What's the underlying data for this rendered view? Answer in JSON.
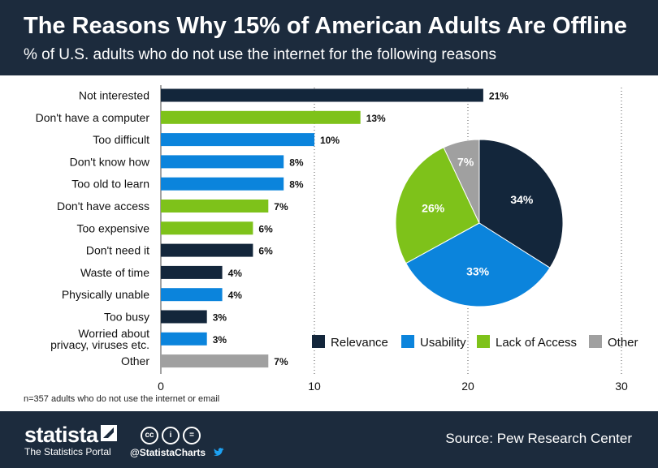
{
  "header": {
    "title": "The Reasons Why 15% of American Adults Are Offline",
    "subtitle": "% of U.S. adults who do not use the internet for the following reasons"
  },
  "colors": {
    "relevance": "#13263b",
    "usability": "#0b84dc",
    "access": "#7ec21a",
    "other": "#a0a0a0"
  },
  "chart_data": [
    {
      "type": "bar",
      "orientation": "horizontal",
      "categories": [
        "Not interested",
        "Don't have a computer",
        "Too difficult",
        "Don't know how",
        "Too old to learn",
        "Don't have access",
        "Too expensive",
        "Don't need it",
        "Waste of time",
        "Physically unable",
        "Too busy",
        "Worried about privacy, viruses etc.",
        "Other"
      ],
      "label_lines": [
        [
          "Not interested"
        ],
        [
          "Don't have a computer"
        ],
        [
          "Too difficult"
        ],
        [
          "Don't know how"
        ],
        [
          "Too old to learn"
        ],
        [
          "Don't have access"
        ],
        [
          "Too expensive"
        ],
        [
          "Don't need it"
        ],
        [
          "Waste of time"
        ],
        [
          "Physically unable"
        ],
        [
          "Too busy"
        ],
        [
          "Worried about",
          "privacy, viruses etc."
        ],
        [
          "Other"
        ]
      ],
      "values": [
        21,
        13,
        10,
        8,
        8,
        7,
        6,
        6,
        4,
        4,
        3,
        3,
        7
      ],
      "value_labels": [
        "21%",
        "13%",
        "10%",
        "8%",
        "8%",
        "7%",
        "6%",
        "6%",
        "4%",
        "4%",
        "3%",
        "3%",
        "7%"
      ],
      "groups": [
        "relevance",
        "access",
        "usability",
        "usability",
        "usability",
        "access",
        "access",
        "relevance",
        "relevance",
        "usability",
        "relevance",
        "usability",
        "other"
      ],
      "xlim": [
        0,
        30
      ],
      "xticks": [
        0,
        10,
        20,
        30
      ],
      "xtick_labels": [
        "0",
        "10",
        "20",
        "30"
      ],
      "grid": "vertical dotted"
    },
    {
      "type": "pie",
      "slices": [
        {
          "name": "Relevance",
          "group": "relevance",
          "value": 34,
          "label": "34%"
        },
        {
          "name": "Usability",
          "group": "usability",
          "value": 33,
          "label": "33%"
        },
        {
          "name": "Lack of Access",
          "group": "access",
          "value": 26,
          "label": "26%"
        },
        {
          "name": "Other",
          "group": "other",
          "value": 7,
          "label": "7%"
        }
      ],
      "legend": [
        {
          "label": "Relevance",
          "group": "relevance"
        },
        {
          "label": "Usability",
          "group": "usability"
        },
        {
          "label": "Lack of Access",
          "group": "access"
        },
        {
          "label": "Other",
          "group": "other"
        }
      ],
      "legend_position": "bottom"
    }
  ],
  "footnote": "n=357 adults who do not use the internet or email",
  "footer": {
    "brand": "statista",
    "tagline": "The Statistics Portal",
    "license_icons": [
      "cc",
      "i",
      "="
    ],
    "handle": "@StatistaCharts",
    "source": "Source: Pew Research Center"
  }
}
